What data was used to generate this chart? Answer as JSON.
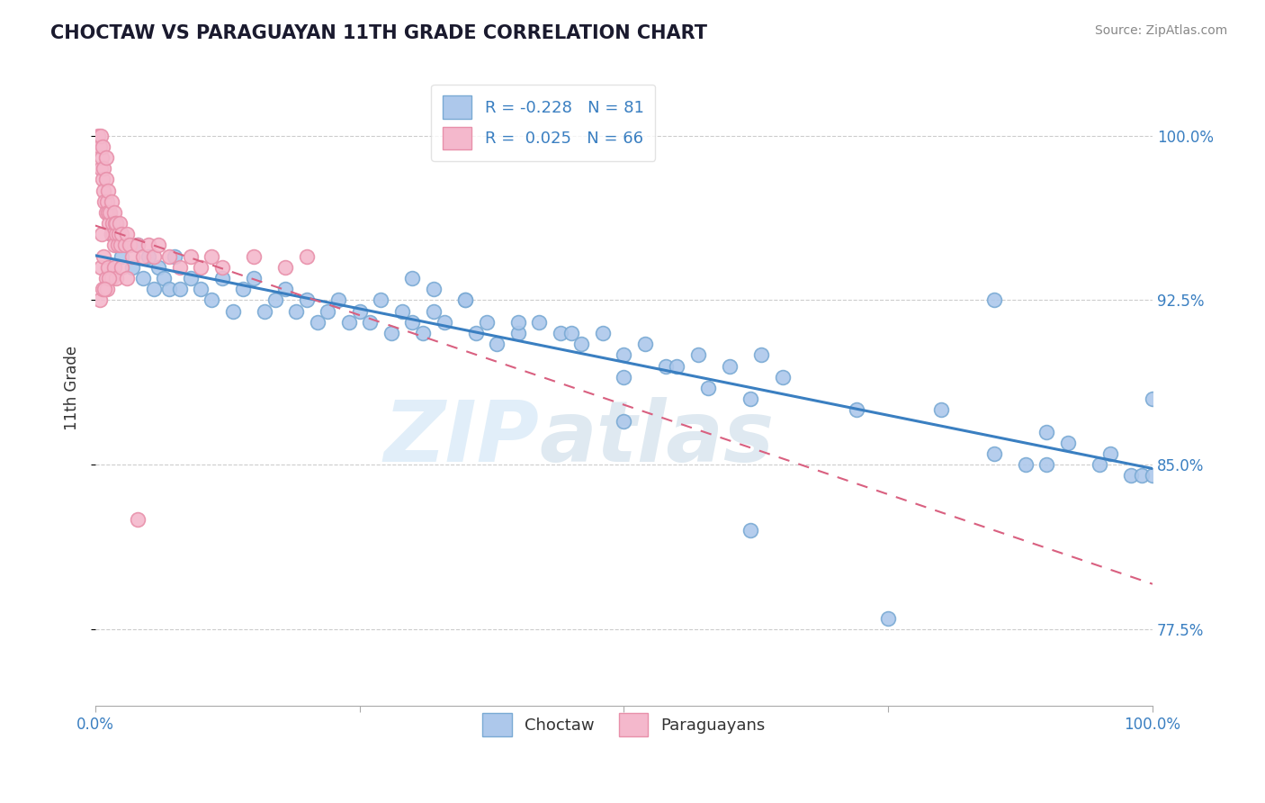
{
  "title": "CHOCTAW VS PARAGUAYAN 11TH GRADE CORRELATION CHART",
  "source": "Source: ZipAtlas.com",
  "ylabel": "11th Grade",
  "xlim": [
    0.0,
    100.0
  ],
  "ylim": [
    74.0,
    103.0
  ],
  "yticks": [
    77.5,
    85.0,
    92.5,
    100.0
  ],
  "ytick_labels": [
    "77.5%",
    "85.0%",
    "92.5%",
    "100.0%"
  ],
  "choctaw_color": "#adc8eb",
  "paraguayan_color": "#f4b8cc",
  "choctaw_edge": "#7aaad4",
  "paraguayan_edge": "#e890aa",
  "choctaw_R": -0.228,
  "choctaw_N": 81,
  "paraguayan_R": 0.025,
  "paraguayan_N": 66,
  "trend_blue_color": "#3a7fc1",
  "trend_pink_color": "#d96080",
  "watermark_zip": "ZIP",
  "watermark_atlas": "atlas",
  "background_color": "#ffffff",
  "choctaw_x": [
    1.5,
    2.0,
    2.5,
    3.0,
    3.5,
    4.0,
    4.5,
    5.0,
    5.5,
    6.0,
    6.5,
    7.0,
    7.5,
    8.0,
    9.0,
    10.0,
    11.0,
    12.0,
    13.0,
    14.0,
    15.0,
    16.0,
    17.0,
    18.0,
    19.0,
    20.0,
    21.0,
    22.0,
    23.0,
    24.0,
    25.0,
    26.0,
    27.0,
    28.0,
    29.0,
    30.0,
    31.0,
    32.0,
    33.0,
    35.0,
    36.0,
    37.0,
    38.0,
    40.0,
    42.0,
    44.0,
    46.0,
    48.0,
    50.0,
    52.0,
    54.0,
    57.0,
    60.0,
    63.0,
    30.0,
    32.0,
    35.0,
    40.0,
    45.0,
    50.0,
    55.0,
    58.0,
    62.0,
    65.0,
    72.0,
    80.0,
    85.0,
    88.0,
    90.0,
    92.0,
    95.0,
    96.0,
    98.0,
    99.0,
    100.0,
    100.0,
    85.0,
    90.0,
    75.0,
    62.0,
    50.0
  ],
  "choctaw_y": [
    95.5,
    96.0,
    94.5,
    95.0,
    94.0,
    95.0,
    93.5,
    94.5,
    93.0,
    94.0,
    93.5,
    93.0,
    94.5,
    93.0,
    93.5,
    93.0,
    92.5,
    93.5,
    92.0,
    93.0,
    93.5,
    92.0,
    92.5,
    93.0,
    92.0,
    92.5,
    91.5,
    92.0,
    92.5,
    91.5,
    92.0,
    91.5,
    92.5,
    91.0,
    92.0,
    91.5,
    91.0,
    92.0,
    91.5,
    92.5,
    91.0,
    91.5,
    90.5,
    91.0,
    91.5,
    91.0,
    90.5,
    91.0,
    90.0,
    90.5,
    89.5,
    90.0,
    89.5,
    90.0,
    93.5,
    93.0,
    92.5,
    91.5,
    91.0,
    89.0,
    89.5,
    88.5,
    88.0,
    89.0,
    87.5,
    87.5,
    85.5,
    85.0,
    86.5,
    86.0,
    85.0,
    85.5,
    84.5,
    84.5,
    84.5,
    88.0,
    92.5,
    85.0,
    78.0,
    82.0,
    87.0
  ],
  "paraguayan_x": [
    0.3,
    0.4,
    0.5,
    0.5,
    0.6,
    0.7,
    0.7,
    0.8,
    0.8,
    0.9,
    1.0,
    1.0,
    1.0,
    1.1,
    1.2,
    1.2,
    1.3,
    1.4,
    1.5,
    1.5,
    1.6,
    1.7,
    1.8,
    1.8,
    1.9,
    2.0,
    2.0,
    2.1,
    2.2,
    2.3,
    2.4,
    2.5,
    2.8,
    3.0,
    3.2,
    3.5,
    4.0,
    4.5,
    5.0,
    5.5,
    6.0,
    7.0,
    8.0,
    9.0,
    10.0,
    11.0,
    12.0,
    15.0,
    18.0,
    20.0,
    0.5,
    0.8,
    1.0,
    1.2,
    1.5,
    1.8,
    2.0,
    2.5,
    3.0,
    0.4,
    0.7,
    1.1,
    1.3,
    0.6,
    0.9,
    4.0
  ],
  "paraguayan_y": [
    100.0,
    99.5,
    100.0,
    98.5,
    99.0,
    98.0,
    99.5,
    97.5,
    98.5,
    97.0,
    98.0,
    96.5,
    99.0,
    97.0,
    96.5,
    97.5,
    96.0,
    96.5,
    95.5,
    97.0,
    96.0,
    95.5,
    96.5,
    95.0,
    96.0,
    95.5,
    96.0,
    95.0,
    95.5,
    96.0,
    95.0,
    95.5,
    95.0,
    95.5,
    95.0,
    94.5,
    95.0,
    94.5,
    95.0,
    94.5,
    95.0,
    94.5,
    94.0,
    94.5,
    94.0,
    94.5,
    94.0,
    94.5,
    94.0,
    94.5,
    94.0,
    94.5,
    93.5,
    94.0,
    93.5,
    94.0,
    93.5,
    94.0,
    93.5,
    92.5,
    93.0,
    93.0,
    93.5,
    95.5,
    93.0,
    82.5
  ]
}
